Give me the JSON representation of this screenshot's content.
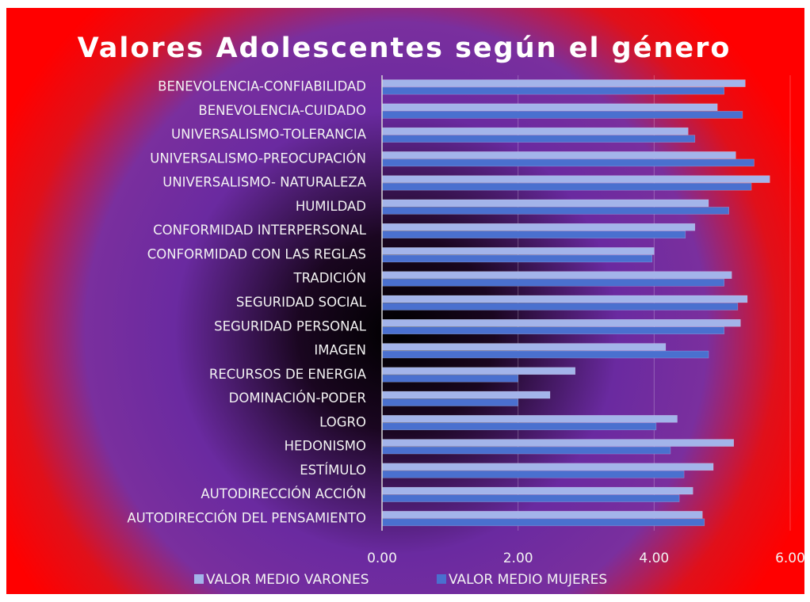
{
  "chart_data": {
    "type": "barh",
    "title": "Valores Adolescentes según el género",
    "categories": [
      "BENEVOLENCIA-CONFIABILIDAD",
      "BENEVOLENCIA-CUIDADO",
      "UNIVERSALISMO-TOLERANCIA",
      "UNIVERSALISMO-PREOCUPACIÓN",
      "UNIVERSALISMO- NATURALEZA",
      "HUMILDAD",
      "CONFORMIDAD INTERPERSONAL",
      "CONFORMIDAD CON LAS REGLAS",
      "TRADICIÓN",
      "SEGURIDAD SOCIAL",
      "SEGURIDAD PERSONAL",
      "IMAGEN",
      "RECURSOS DE ENERGIA",
      "DOMINACIÓN-PODER",
      "LOGRO",
      "HEDONISMO",
      "ESTÍMULO",
      "AUTODIRECCIÓN ACCIÓN",
      "AUTODIRECCIÓN DEL PENSAMIENTO"
    ],
    "series": [
      {
        "name": "VALOR MEDIO VARONES",
        "color": "#a3b4ea",
        "values": [
          5.34,
          4.93,
          4.5,
          5.2,
          5.7,
          4.8,
          4.6,
          4.0,
          5.14,
          5.37,
          5.27,
          4.17,
          2.84,
          2.47,
          4.34,
          5.17,
          4.87,
          4.57,
          4.71
        ]
      },
      {
        "name": "VALOR MEDIO MUJERES",
        "color": "#4a70cf",
        "values": [
          5.03,
          5.3,
          4.6,
          5.47,
          5.43,
          5.1,
          4.46,
          3.97,
          5.03,
          5.23,
          5.03,
          4.8,
          2.0,
          2.0,
          4.03,
          4.24,
          4.44,
          4.37,
          4.74
        ]
      }
    ],
    "xlim": [
      0,
      6
    ],
    "xticks": [
      {
        "value": 0,
        "label": "0.00"
      },
      {
        "value": 2,
        "label": "2.00"
      },
      {
        "value": 4,
        "label": "4.00"
      },
      {
        "value": 6,
        "label": "6.00"
      }
    ],
    "grid": true,
    "legend": "bottom"
  }
}
